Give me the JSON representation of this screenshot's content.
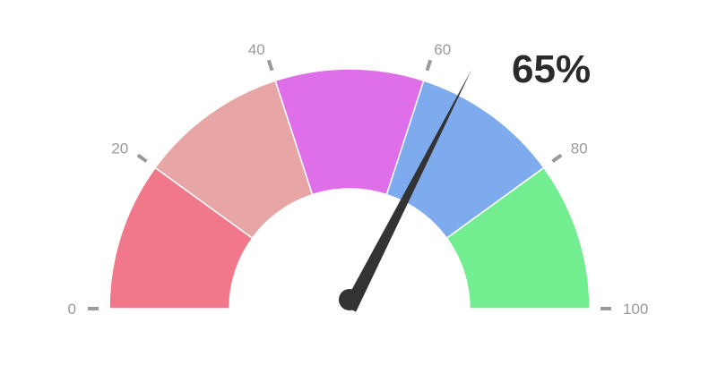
{
  "chart_data": {
    "type": "gauge",
    "min": 0,
    "max": 100,
    "value": 65,
    "value_label": "65%",
    "ticks": [
      {
        "value": 0,
        "label": "0"
      },
      {
        "value": 20,
        "label": "20"
      },
      {
        "value": 40,
        "label": "40"
      },
      {
        "value": 60,
        "label": "60"
      },
      {
        "value": 80,
        "label": "80"
      },
      {
        "value": 100,
        "label": "100"
      }
    ],
    "bands": [
      {
        "from": 0,
        "to": 20,
        "color": "#f0788a"
      },
      {
        "from": 20,
        "to": 40,
        "color": "#e8a5a5"
      },
      {
        "from": 40,
        "to": 60,
        "color": "#df6fe9"
      },
      {
        "from": 60,
        "to": 80,
        "color": "#7eaaee"
      },
      {
        "from": 80,
        "to": 100,
        "color": "#72ee90"
      }
    ],
    "needle_color": "#333333",
    "tick_color": "#9a9a9a"
  }
}
